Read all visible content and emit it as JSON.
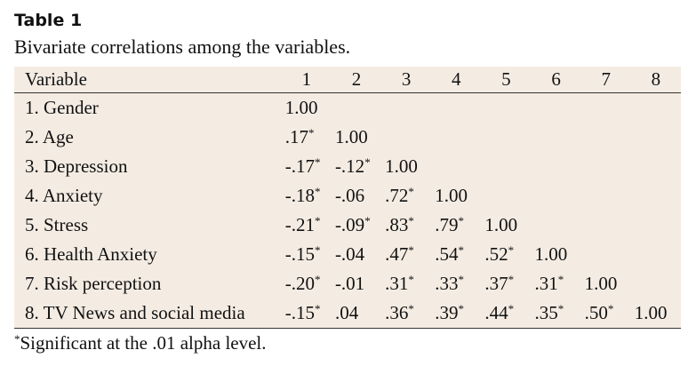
{
  "title": "Table 1",
  "caption": "Bivariate correlations among the variables.",
  "table": {
    "header": [
      "Variable",
      "1",
      "2",
      "3",
      "4",
      "5",
      "6",
      "7",
      "8"
    ],
    "rows": [
      {
        "label": "1. Gender",
        "cells": [
          {
            "value": "1.00"
          }
        ]
      },
      {
        "label": "2. Age",
        "cells": [
          {
            "value": ".17",
            "sig": "*"
          },
          {
            "value": "1.00"
          }
        ]
      },
      {
        "label": "3. Depression",
        "cells": [
          {
            "value": "-.17",
            "sig": "*"
          },
          {
            "value": "-.12",
            "sig": "*"
          },
          {
            "value": "1.00"
          }
        ]
      },
      {
        "label": "4. Anxiety",
        "cells": [
          {
            "value": "-.18",
            "sig": "*"
          },
          {
            "value": "-.06"
          },
          {
            "value": ".72",
            "sig": "*"
          },
          {
            "value": "1.00"
          }
        ]
      },
      {
        "label": "5. Stress",
        "cells": [
          {
            "value": "-.21",
            "sig": "*"
          },
          {
            "value": "-.09",
            "sig": "*"
          },
          {
            "value": ".83",
            "sig": "*"
          },
          {
            "value": ".79",
            "sig": "*"
          },
          {
            "value": "1.00"
          }
        ]
      },
      {
        "label": "6. Health Anxiety",
        "cells": [
          {
            "value": "-.15",
            "sig": "*"
          },
          {
            "value": "-.04"
          },
          {
            "value": ".47",
            "sig": "*"
          },
          {
            "value": ".54",
            "sig": "*"
          },
          {
            "value": ".52",
            "sig": "*"
          },
          {
            "value": "1.00"
          }
        ]
      },
      {
        "label": "7. Risk perception",
        "cells": [
          {
            "value": "-.20",
            "sig": "*"
          },
          {
            "value": "-.01"
          },
          {
            "value": ".31",
            "sig": "*"
          },
          {
            "value": ".33",
            "sig": "*"
          },
          {
            "value": ".37",
            "sig": "*"
          },
          {
            "value": ".31",
            "sig": "*"
          },
          {
            "value": "1.00"
          }
        ]
      },
      {
        "label": "8. TV News and social media",
        "cells": [
          {
            "value": "-.15",
            "sig": "*"
          },
          {
            "value": ".04"
          },
          {
            "value": ".36",
            "sig": "*"
          },
          {
            "value": ".39",
            "sig": "*"
          },
          {
            "value": ".44",
            "sig": "*"
          },
          {
            "value": ".35",
            "sig": "*"
          },
          {
            "value": ".50",
            "sig": "*"
          },
          {
            "value": "1.00"
          }
        ]
      }
    ]
  },
  "footnote": {
    "mark": "*",
    "text": "Significant at the .01 alpha level."
  }
}
